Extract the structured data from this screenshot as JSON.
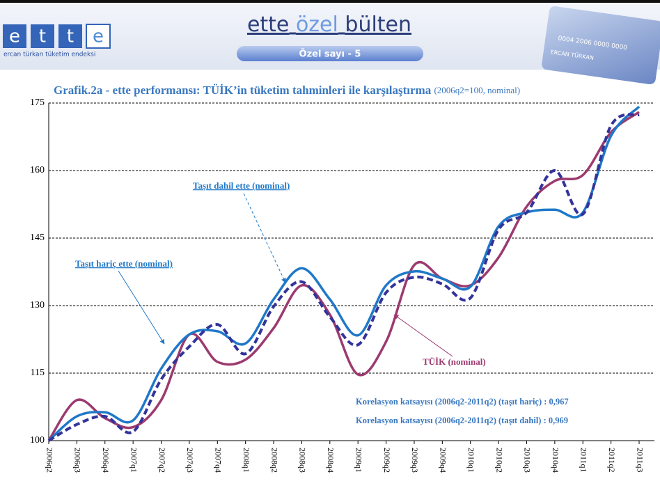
{
  "header": {
    "logo": [
      "e",
      "t",
      "t",
      "e"
    ],
    "tagline": "ercan türkan tüketim endeksi",
    "title": [
      "ette",
      "özel",
      "bülten"
    ],
    "issue": "Özel sayı - 5",
    "card_number": "0004 2006 0000 0000",
    "card_name": "ERCAN TÜRKAN"
  },
  "chart_data": {
    "type": "line",
    "title": "Grafik.2a - ette performansı: TÜİK’in tüketim tahminleri ile karşılaştırma",
    "subtitle": "(2006q2=100, nominal)",
    "categories": [
      "2006q2",
      "2006q3",
      "2006q4",
      "2007q1",
      "2007q2",
      "2007q3",
      "2007q4",
      "2008q1",
      "2008q2",
      "2008q3",
      "2008q4",
      "2009q1",
      "2009q2",
      "2009q3",
      "2009q4",
      "2010q1",
      "2010q2",
      "2010q3",
      "2010q4",
      "2011q1",
      "2011q2",
      "2011q3"
    ],
    "series": [
      {
        "name": "TÜİK (nominal)",
        "color": "#9c3a6f",
        "dashed": false,
        "values": [
          100,
          109,
          105,
          103,
          109,
          123.6,
          117.5,
          118,
          125,
          134.5,
          128,
          114.7,
          122,
          139,
          136,
          134.5,
          140.7,
          152,
          157.7,
          159,
          168.5,
          173
        ]
      },
      {
        "name": "Taşıt hariç ette (nominal)",
        "color": "#1f78c8",
        "dashed": false,
        "values": [
          100,
          105.4,
          106.3,
          104.5,
          116,
          123.6,
          124.3,
          121.6,
          131.4,
          138.3,
          131.4,
          123.4,
          134.5,
          137.6,
          136,
          134.2,
          147.6,
          150.7,
          151.3,
          150.7,
          167.7,
          174.2
        ]
      },
      {
        "name": "Taşıt dahil ette (nominal)",
        "color": "#33339a",
        "dashed": true,
        "values": [
          100,
          103.6,
          105.4,
          102,
          113.6,
          120.9,
          125.8,
          119.3,
          129.8,
          135.3,
          127.5,
          121.3,
          132.9,
          136.3,
          134.8,
          131.7,
          146.9,
          150.7,
          160,
          150.3,
          170,
          172.4
        ]
      }
    ],
    "ylim": [
      100,
      175
    ],
    "yticks": [
      100,
      115,
      130,
      145,
      160,
      175
    ],
    "grid": true,
    "annotations": [
      "Korelasyon katsayısı (2006q2-2011q2) (taşıt hariç) : 0,967",
      "Korelasyon katsayısı (2006q2-2011q2) (taşıt dahil) : 0,969"
    ]
  }
}
